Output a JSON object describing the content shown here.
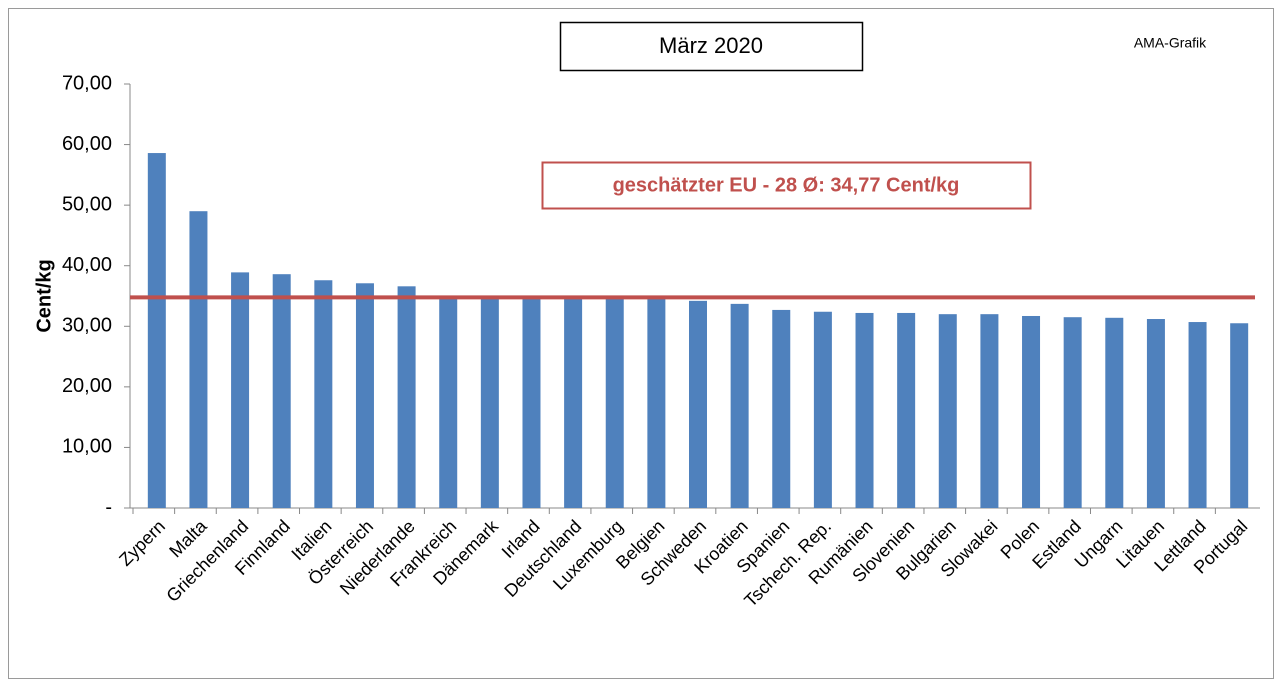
{
  "chart_data": {
    "type": "bar",
    "title": "März 2020",
    "source": "AMA-Grafik",
    "y_label": "Cent/kg",
    "categories": [
      "Zypern",
      "Malta",
      "Griechenland",
      "Finnland",
      "Italien",
      "Österreich",
      "Niederlande",
      "Frankreich",
      "Dänemark",
      "Irland",
      "Deutschland",
      "Luxemburg",
      "Belgien",
      "Schweden",
      "Kroatien",
      "Spanien",
      "Tschech. Rep.",
      "Rumänien",
      "Slovenien",
      "Bulgarien",
      "Slowakei",
      "Polen",
      "Estland",
      "Ungarn",
      "Litauen",
      "Lettland",
      "Portugal"
    ],
    "values": [
      58.6,
      49.0,
      38.9,
      38.6,
      37.6,
      37.1,
      36.6,
      35.0,
      35.0,
      34.9,
      34.9,
      34.8,
      34.8,
      34.2,
      33.7,
      32.7,
      32.4,
      32.2,
      32.2,
      32.0,
      32.0,
      31.7,
      31.5,
      31.4,
      31.2,
      30.7,
      30.5
    ],
    "color": "#4f81bd",
    "reference_line": {
      "value": 34.77,
      "label": "geschätzter EU - 28 Ø: 34,77 Cent/kg",
      "color": "#c0504d"
    },
    "ylim": [
      0,
      70
    ],
    "yticks": [
      {
        "value": 0,
        "label": "-"
      },
      {
        "value": 10,
        "label": "10,00"
      },
      {
        "value": 20,
        "label": "20,00"
      },
      {
        "value": 30,
        "label": "30,00"
      },
      {
        "value": 40,
        "label": "40,00"
      },
      {
        "value": 50,
        "label": "50,00"
      },
      {
        "value": 60,
        "label": "60,00"
      },
      {
        "value": 70,
        "label": "70,00"
      }
    ],
    "grid": false
  }
}
